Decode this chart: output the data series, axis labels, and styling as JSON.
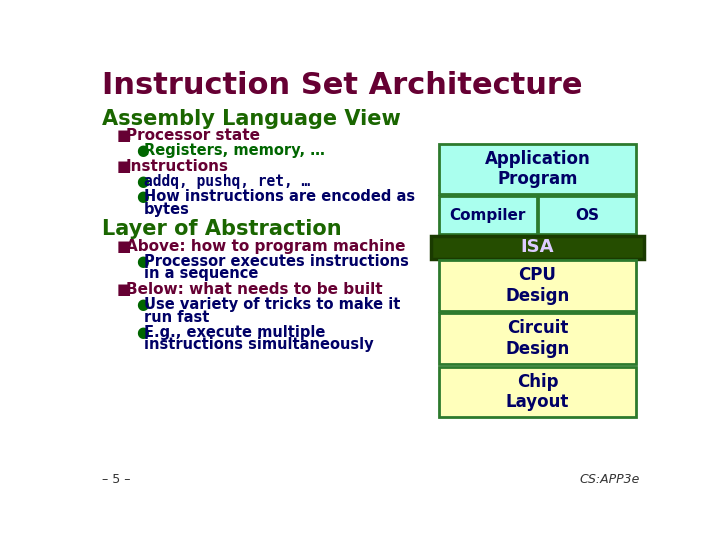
{
  "title": "Instruction Set Architecture",
  "title_color": "#660033",
  "title_fontsize": 22,
  "bg_color": "#ffffff",
  "section1_title": "Assembly Language View",
  "section1_color": "#1a6600",
  "section1_fontsize": 15,
  "section2_title": "Layer of Abstraction",
  "section2_color": "#1a6600",
  "section2_fontsize": 15,
  "bullet_color": "#660033",
  "bullet_fontsize": 11,
  "sub_bullet_color": "#000066",
  "sub_bullet_fontsize": 10.5,
  "diagram": {
    "app_program": {
      "label": "Application\nProgram",
      "color": "#aaffee",
      "border": "#2d7a2d"
    },
    "compiler": {
      "label": "Compiler",
      "color": "#aaffee",
      "border": "#2d7a2d"
    },
    "os": {
      "label": "OS",
      "color": "#aaffee",
      "border": "#2d7a2d"
    },
    "isa": {
      "label": "ISA",
      "color": "#254d00",
      "text_color": "#ddccff",
      "border": "#1a3a00"
    },
    "cpu": {
      "label": "CPU\nDesign",
      "color": "#ffffbb",
      "border": "#2d7a2d"
    },
    "circuit": {
      "label": "Circuit\nDesign",
      "color": "#ffffbb",
      "border": "#2d7a2d"
    },
    "chip": {
      "label": "Chip\nLayout",
      "color": "#ffffbb",
      "border": "#2d7a2d"
    }
  },
  "footer_left": "– 5 –",
  "footer_right": "CS:APP3e"
}
